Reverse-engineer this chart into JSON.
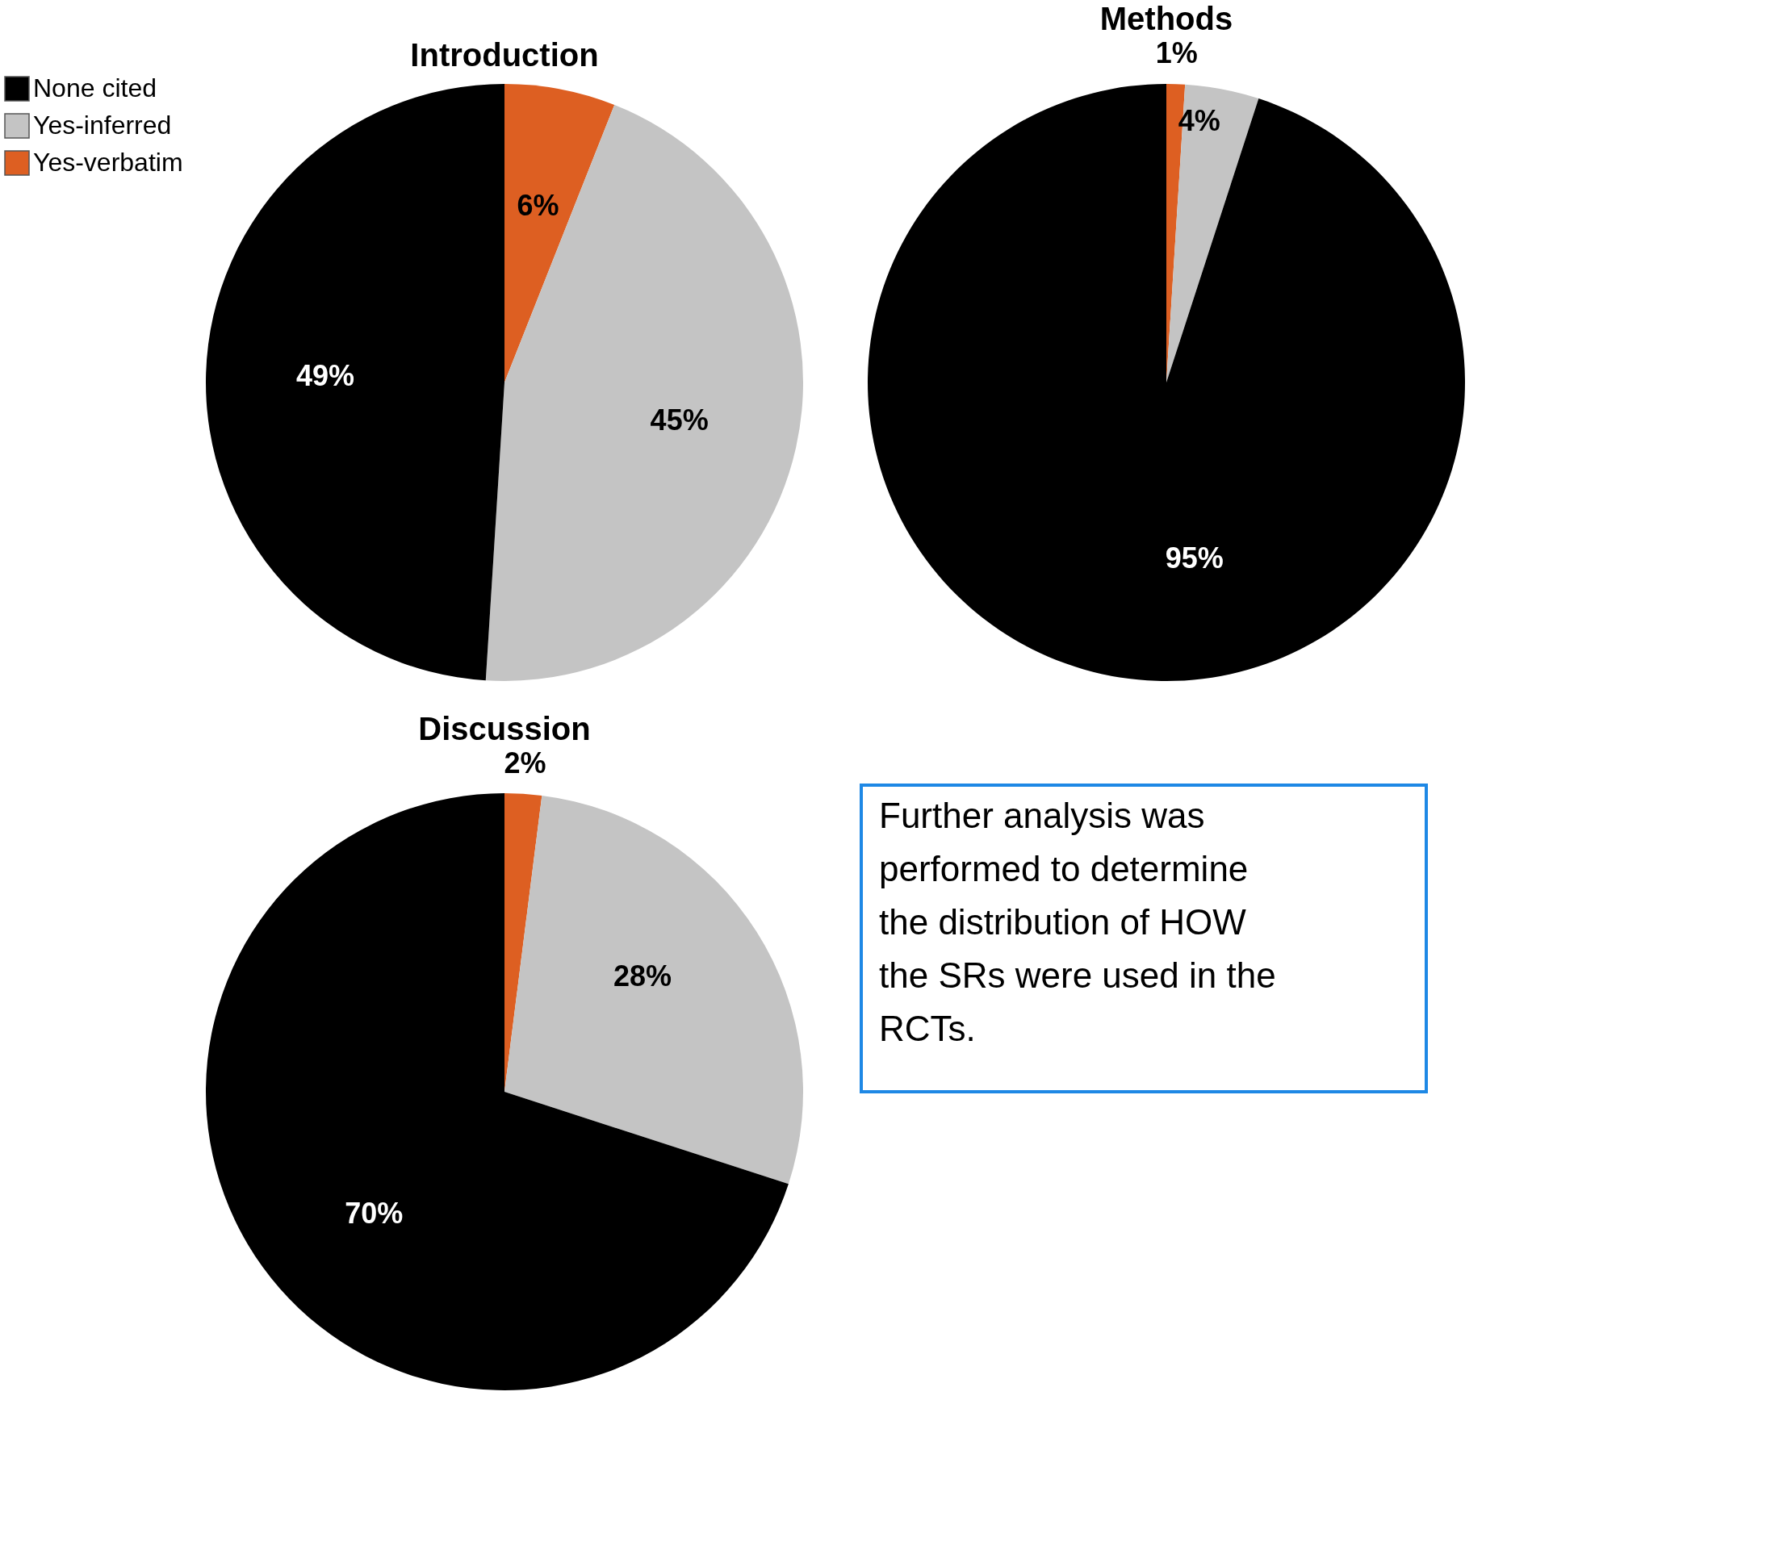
{
  "chart_data": [
    {
      "type": "pie",
      "title": "Introduction",
      "categories": [
        "Yes-verbatim",
        "Yes-inferred",
        "None cited"
      ],
      "values": [
        6,
        45,
        49
      ],
      "value_labels": [
        "6%",
        "45%",
        "49%"
      ],
      "colors": [
        "#dd5f22",
        "#c4c4c4",
        "#000000"
      ],
      "legend": "top left"
    },
    {
      "type": "pie",
      "title": "Methods",
      "categories": [
        null,
        null,
        null
      ],
      "values": [
        1,
        4,
        95
      ],
      "value_labels": [
        "1%",
        "4%",
        "95%"
      ],
      "colors": [
        "#dd5f22",
        "#c4c4c4",
        "#000000"
      ]
    },
    {
      "type": "pie",
      "title": "Discussion",
      "categories": [
        null,
        null,
        null
      ],
      "values": [
        2,
        28,
        70
      ],
      "value_labels": [
        "2%",
        "28%",
        "70%"
      ],
      "colors": [
        "#dd5f22",
        "#c4c4c4",
        "#000000"
      ]
    },
    {
      "type": "other",
      "annotations": [
        "Further analysis was performed to determine the distribution of HOW the SRs were used in the RCTs."
      ]
    }
  ]
}
